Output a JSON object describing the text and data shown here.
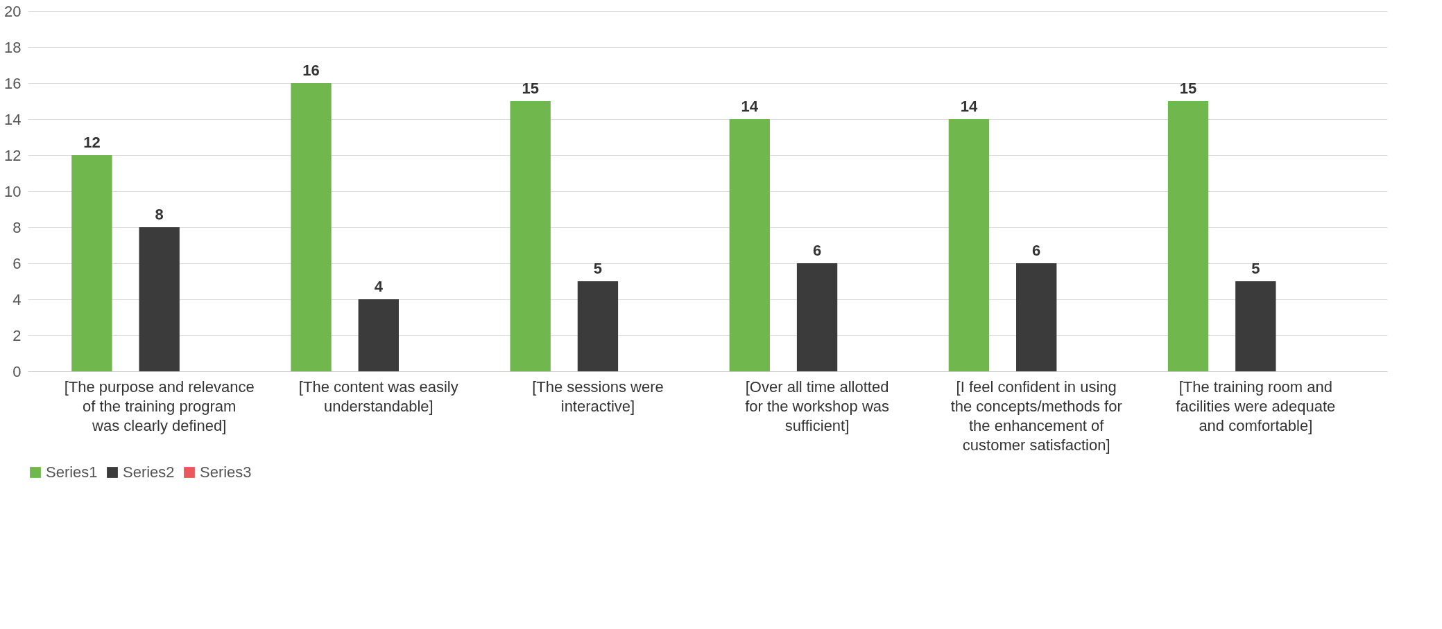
{
  "chart_data": {
    "type": "bar",
    "categories": [
      "[The purpose and relevance of the training program was clearly defined]",
      "[The content was easily understandable]",
      "[The sessions were interactive]",
      "[Over all time allotted for the workshop was sufficient]",
      "[I feel confident in using the concepts/methods for the enhancement of customer satisfaction]",
      "[The training room and facilities were adequate and comfortable]"
    ],
    "series": [
      {
        "name": "Series1",
        "color": "#70b84e",
        "values": [
          12,
          16,
          15,
          14,
          14,
          15
        ]
      },
      {
        "name": "Series2",
        "color": "#3b3b3b",
        "values": [
          8,
          4,
          5,
          6,
          6,
          5
        ]
      },
      {
        "name": "Series3",
        "color": "#e8585e",
        "values": [
          null,
          null,
          null,
          null,
          null,
          null
        ]
      }
    ],
    "ylim": [
      0,
      20
    ],
    "yticks": [
      0,
      2,
      4,
      6,
      8,
      10,
      12,
      14,
      16,
      18,
      20
    ],
    "grid": "y",
    "legend": "bottom",
    "data_labels": true
  }
}
